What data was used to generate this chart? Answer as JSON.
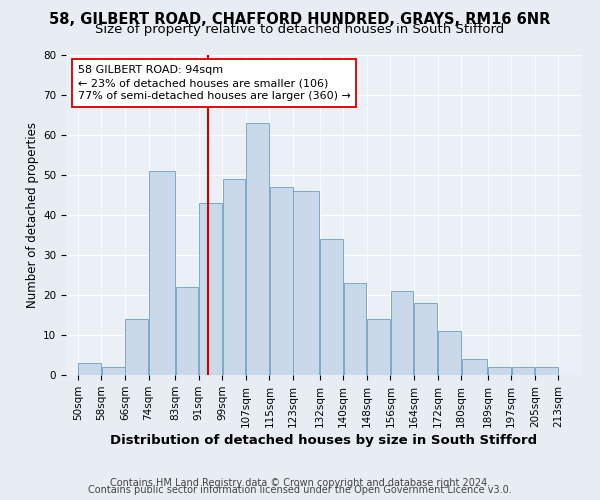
{
  "title1": "58, GILBERT ROAD, CHAFFORD HUNDRED, GRAYS, RM16 6NR",
  "title2": "Size of property relative to detached houses in South Stifford",
  "xlabel": "Distribution of detached houses by size in South Stifford",
  "ylabel": "Number of detached properties",
  "footnote1": "Contains HM Land Registry data © Crown copyright and database right 2024.",
  "footnote2": "Contains public sector information licensed under the Open Government Licence v3.0.",
  "bar_left_edges": [
    50,
    58,
    66,
    74,
    83,
    91,
    99,
    107,
    115,
    123,
    132,
    140,
    148,
    156,
    164,
    172,
    180,
    189,
    197,
    205
  ],
  "bar_widths": [
    8,
    8,
    8,
    9,
    8,
    8,
    8,
    8,
    8,
    9,
    8,
    8,
    8,
    8,
    8,
    8,
    9,
    8,
    8,
    8
  ],
  "bar_heights": [
    3,
    2,
    14,
    51,
    22,
    43,
    49,
    63,
    47,
    46,
    34,
    23,
    14,
    21,
    18,
    11,
    4,
    2,
    2,
    2
  ],
  "tick_labels": [
    "50sqm",
    "58sqm",
    "66sqm",
    "74sqm",
    "83sqm",
    "91sqm",
    "99sqm",
    "107sqm",
    "115sqm",
    "123sqm",
    "132sqm",
    "140sqm",
    "148sqm",
    "156sqm",
    "164sqm",
    "172sqm",
    "180sqm",
    "189sqm",
    "197sqm",
    "205sqm",
    "213sqm"
  ],
  "bar_facecolor": "#c9d9ea",
  "bar_edgecolor": "#7aaac8",
  "vline_x": 94,
  "vline_color": "#cc0000",
  "annotation_line1": "58 GILBERT ROAD: 94sqm",
  "annotation_line2": "← 23% of detached houses are smaller (106)",
  "annotation_line3": "77% of semi-detached houses are larger (360) →",
  "annotation_box_edgecolor": "#cc0000",
  "annotation_box_facecolor": "#ffffff",
  "ylim": [
    0,
    80
  ],
  "yticks": [
    0,
    10,
    20,
    30,
    40,
    50,
    60,
    70,
    80
  ],
  "xlim_left": 46,
  "xlim_right": 221,
  "background_color": "#e8edf3",
  "axes_facecolor": "#eaf0f6",
  "grid_color": "#ffffff",
  "title1_fontsize": 10.5,
  "title2_fontsize": 9.5,
  "xlabel_fontsize": 9.5,
  "ylabel_fontsize": 8.5,
  "tick_fontsize": 7.5,
  "annotation_fontsize": 8,
  "footnote_fontsize": 7
}
